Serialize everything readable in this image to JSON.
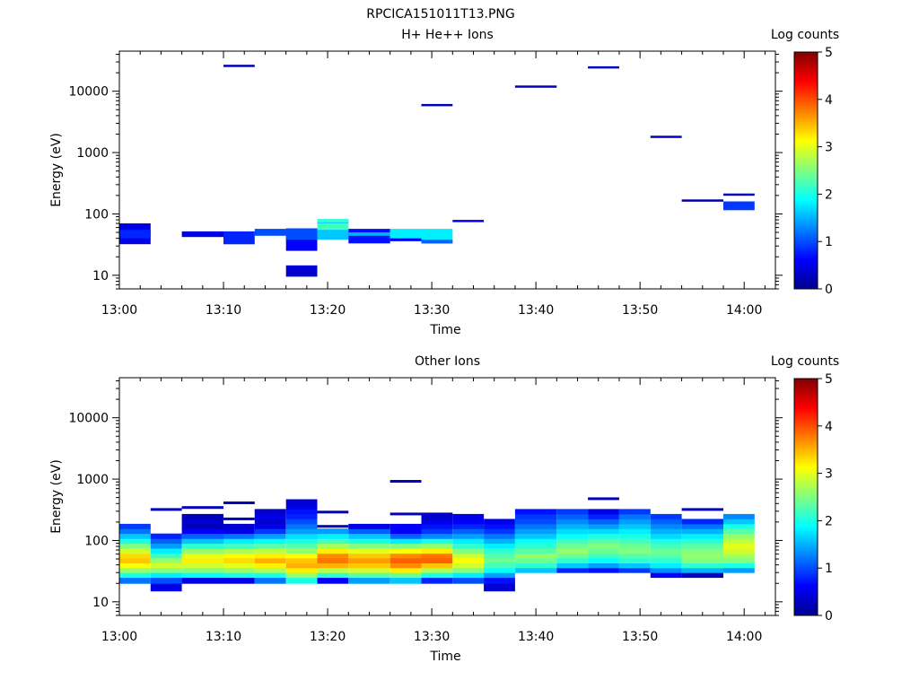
{
  "page_title": "RPCICA151011T13.PNG",
  "chart_data": [
    {
      "type": "heatmap",
      "title": "H+ He++ Ions",
      "xlabel": "Time",
      "ylabel": "Energy (eV)",
      "y_scale": "log",
      "ylim": [
        6,
        45000
      ],
      "xlim": [
        "13:00",
        "14:03"
      ],
      "x_ticks": [
        "13:00",
        "13:10",
        "13:20",
        "13:30",
        "13:40",
        "13:50",
        "14:00"
      ],
      "y_ticks": [
        "10",
        "100",
        "1000",
        "10000"
      ],
      "colorbar": {
        "label": "Log counts",
        "range": [
          0,
          5
        ],
        "ticks": [
          "0",
          "1",
          "2",
          "3",
          "4",
          "5"
        ],
        "colormap": "jet"
      },
      "time_bins": [
        "13:00",
        "13:03",
        "13:06",
        "13:10",
        "13:13",
        "13:16",
        "13:19",
        "13:22",
        "13:26",
        "13:29",
        "13:32",
        "13:35",
        "13:38",
        "13:42",
        "13:45",
        "13:48",
        "13:51",
        "13:54",
        "13:58",
        "14:01"
      ],
      "cells": [
        {
          "t": 0,
          "e": [
            32,
            70
          ],
          "v": 0.5
        },
        {
          "t": 0,
          "e": [
            40,
            55
          ],
          "v": 0.8
        },
        {
          "t": 2,
          "e": [
            42,
            52
          ],
          "v": 0.5
        },
        {
          "t": 3,
          "e": [
            32,
            52
          ],
          "v": 0.8
        },
        {
          "t": 3,
          "e": [
            25500,
            27000
          ],
          "v": 0.3
        },
        {
          "t": 4,
          "e": [
            44,
            57
          ],
          "v": 1.0
        },
        {
          "t": 5,
          "e": [
            25,
            58
          ],
          "v": 0.6
        },
        {
          "t": 5,
          "e": [
            38,
            58
          ],
          "v": 1.0
        },
        {
          "t": 5,
          "e": [
            9.5,
            14.5
          ],
          "v": 0.4
        },
        {
          "t": 6,
          "e": [
            38,
            82
          ],
          "v": 1.6
        },
        {
          "t": 6,
          "e": [
            55,
            70
          ],
          "v": 2.2
        },
        {
          "t": 6,
          "e": [
            72,
            82
          ],
          "v": 2.1
        },
        {
          "t": 7,
          "e": [
            33,
            57
          ],
          "v": 0.7
        },
        {
          "t": 7,
          "e": [
            44,
            50
          ],
          "v": 1.5
        },
        {
          "t": 8,
          "e": [
            36,
            57
          ],
          "v": 1.8
        },
        {
          "t": 8,
          "e": [
            36,
            40
          ],
          "v": 0.6
        },
        {
          "t": 9,
          "e": [
            33,
            57
          ],
          "v": 1.8
        },
        {
          "t": 9,
          "e": [
            33,
            38
          ],
          "v": 1.1
        },
        {
          "t": 9,
          "e": [
            5800,
            6200
          ],
          "v": 0.3
        },
        {
          "t": 10,
          "e": [
            75,
            80
          ],
          "v": 0.5
        },
        {
          "t": 12,
          "e": [
            11800,
            12400
          ],
          "v": 0.3
        },
        {
          "t": 14,
          "e": [
            24000,
            25500
          ],
          "v": 0.3
        },
        {
          "t": 16,
          "e": [
            1750,
            1880
          ],
          "v": 0.3
        },
        {
          "t": 17,
          "e": [
            168,
            172
          ],
          "v": 0.2
        },
        {
          "t": 18,
          "e": [
            115,
            160
          ],
          "v": 0.9
        },
        {
          "t": 18,
          "e": [
            200,
            215
          ],
          "v": 0.3
        }
      ]
    },
    {
      "type": "heatmap",
      "title": "Other Ions",
      "xlabel": "Time",
      "ylabel": "Energy (eV)",
      "y_scale": "log",
      "ylim": [
        6,
        45000
      ],
      "xlim": [
        "13:00",
        "14:03"
      ],
      "x_ticks": [
        "13:00",
        "13:10",
        "13:20",
        "13:30",
        "13:40",
        "13:50",
        "14:00"
      ],
      "y_ticks": [
        "10",
        "100",
        "1000",
        "10000"
      ],
      "colorbar": {
        "label": "Log counts",
        "range": [
          0,
          5
        ],
        "ticks": [
          "0",
          "1",
          "2",
          "3",
          "4",
          "5"
        ],
        "colormap": "jet"
      },
      "time_bins": [
        "13:00",
        "13:03",
        "13:06",
        "13:10",
        "13:13",
        "13:16",
        "13:19",
        "13:22",
        "13:26",
        "13:29",
        "13:32",
        "13:35",
        "13:38",
        "13:42",
        "13:45",
        "13:48",
        "13:51",
        "13:54",
        "13:58",
        "14:01"
      ],
      "energy_bins": [
        15,
        20,
        25,
        30,
        36,
        43,
        52,
        62,
        75,
        90,
        108,
        130,
        156,
        187,
        225,
        270,
        325,
        390,
        470,
        565
      ],
      "columns": [
        {
          "t": 0,
          "v": [
            null,
            1.2,
            2.0,
            2.6,
            3.1,
            3.4,
            3.3,
            2.9,
            2.5,
            2.0,
            1.6,
            1.2,
            0.9,
            null,
            null,
            null,
            null,
            null,
            null
          ],
          "lines": []
        },
        {
          "t": 1,
          "v": [
            0.5,
            1.0,
            1.8,
            2.5,
            2.9,
            2.6,
            2.2,
            1.8,
            1.4,
            1.1,
            0.8,
            null,
            null,
            null,
            null,
            null,
            null,
            null,
            null
          ],
          "lines": [
            320
          ]
        },
        {
          "t": 2,
          "v": [
            null,
            0.5,
            1.9,
            2.5,
            2.9,
            3.2,
            3.0,
            2.6,
            2.1,
            1.6,
            1.1,
            0.6,
            0.3,
            0.4,
            0.3,
            null,
            null,
            null,
            null
          ],
          "lines": [
            345
          ]
        },
        {
          "t": 3,
          "v": [
            null,
            0.5,
            2.0,
            2.6,
            3.0,
            3.3,
            3.1,
            2.7,
            2.2,
            1.8,
            1.2,
            0.5,
            0.4,
            null,
            null,
            null,
            null,
            null,
            null
          ],
          "lines": [
            410,
            225
          ]
        },
        {
          "t": 4,
          "v": [
            null,
            1.2,
            2.0,
            2.7,
            3.2,
            3.5,
            3.2,
            2.8,
            2.3,
            1.9,
            1.4,
            0.9,
            0.5,
            0.4,
            0.5,
            0.4,
            null,
            null,
            null
          ],
          "lines": [
            300
          ]
        },
        {
          "t": 5,
          "v": [
            null,
            2.0,
            2.6,
            3.2,
            3.5,
            3.4,
            3.1,
            2.6,
            2.3,
            2.0,
            1.7,
            1.4,
            1.2,
            1.0,
            0.8,
            0.7,
            0.5,
            0.4,
            null
          ],
          "lines": []
        },
        {
          "t": 6,
          "v": [
            null,
            0.6,
            2.1,
            2.8,
            3.5,
            3.8,
            3.7,
            3.2,
            2.7,
            2.2,
            1.8,
            1.4,
            null,
            null,
            null,
            null,
            null,
            null,
            null
          ],
          "lines": [
            290,
            170
          ]
        },
        {
          "t": 7,
          "v": [
            null,
            1.4,
            2.3,
            2.9,
            3.4,
            3.6,
            3.4,
            3.0,
            2.5,
            2.0,
            1.6,
            1.1,
            0.5,
            null,
            null,
            null,
            null,
            null,
            null
          ],
          "lines": []
        },
        {
          "t": 8,
          "v": [
            null,
            1.6,
            2.4,
            3.2,
            3.7,
            3.9,
            3.7,
            3.1,
            2.5,
            1.8,
            1.1,
            0.6,
            0.6,
            null,
            null,
            null,
            null,
            null,
            null
          ],
          "lines": [
            270,
            920
          ]
        },
        {
          "t": 9,
          "v": [
            null,
            0.8,
            2.0,
            2.7,
            3.4,
            3.9,
            3.8,
            3.2,
            2.6,
            2.0,
            1.3,
            0.9,
            0.7,
            0.5,
            0.4,
            null,
            null,
            null,
            null
          ],
          "lines": [
            270
          ]
        },
        {
          "t": 10,
          "v": [
            null,
            1.0,
            1.8,
            2.5,
            2.9,
            3.1,
            2.9,
            2.5,
            2.1,
            1.8,
            1.4,
            1.1,
            0.8,
            0.6,
            0.5,
            null,
            null,
            null,
            null
          ],
          "lines": []
        },
        {
          "t": 11,
          "v": [
            0.4,
            0.7,
            1.4,
            1.9,
            2.2,
            2.4,
            2.3,
            2.1,
            1.8,
            1.5,
            1.2,
            0.9,
            0.7,
            0.5,
            null,
            null,
            null,
            null,
            null
          ],
          "lines": []
        },
        {
          "t": 12,
          "v": [
            null,
            null,
            null,
            1.6,
            2.1,
            2.4,
            2.6,
            2.3,
            2.1,
            1.9,
            1.6,
            1.4,
            1.2,
            1.0,
            0.9,
            0.7,
            null,
            null,
            null
          ],
          "lines": []
        },
        {
          "t": 13,
          "v": [
            null,
            null,
            null,
            0.8,
            1.6,
            2.1,
            2.4,
            2.6,
            2.4,
            2.2,
            1.9,
            1.7,
            1.5,
            1.3,
            1.1,
            0.9,
            null,
            null,
            null
          ],
          "lines": []
        },
        {
          "t": 14,
          "v": [
            null,
            null,
            null,
            0.7,
            1.4,
            1.9,
            2.2,
            2.4,
            2.5,
            2.3,
            2.0,
            1.7,
            1.4,
            1.1,
            0.8,
            0.5,
            null,
            null,
            null
          ],
          "lines": [
            480
          ]
        },
        {
          "t": 15,
          "v": [
            null,
            null,
            null,
            0.9,
            1.6,
            2.1,
            2.3,
            2.5,
            2.4,
            2.2,
            2.0,
            1.8,
            1.6,
            1.4,
            1.2,
            0.9,
            null,
            null,
            null
          ],
          "lines": []
        },
        {
          "t": 16,
          "v": [
            null,
            null,
            0.6,
            1.3,
            1.8,
            2.1,
            2.3,
            2.4,
            2.2,
            2.0,
            1.7,
            1.5,
            1.3,
            1.1,
            0.9,
            null,
            null,
            null,
            null
          ],
          "lines": []
        },
        {
          "t": 17,
          "v": [
            null,
            null,
            0.3,
            1.5,
            2.1,
            2.5,
            2.6,
            2.5,
            2.3,
            2.1,
            1.8,
            1.5,
            1.2,
            0.8,
            null,
            null,
            null,
            null,
            null
          ],
          "lines": [
            320
          ]
        },
        {
          "t": 18,
          "v": [
            null,
            null,
            null,
            1.4,
            2.0,
            2.5,
            2.7,
            2.9,
            3.0,
            2.8,
            2.6,
            2.3,
            2.0,
            1.6,
            1.3,
            null,
            null,
            null,
            null
          ],
          "lines": []
        }
      ]
    }
  ]
}
